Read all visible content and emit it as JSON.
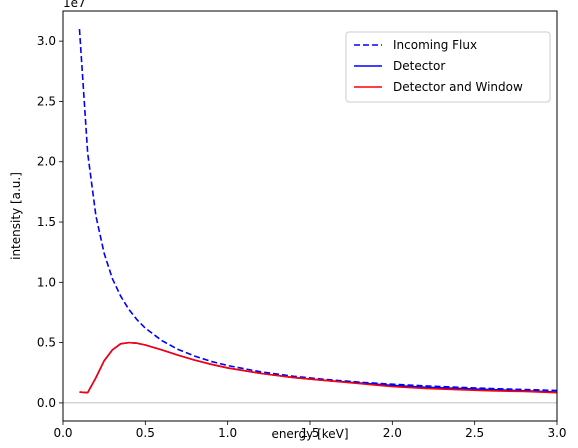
{
  "chart_data": {
    "type": "line",
    "title": "",
    "xlabel": "energy [keV]",
    "ylabel": "intensity [a.u.]",
    "y_offset_label": "1e7",
    "xlim": [
      0.0,
      3.0
    ],
    "ylim": [
      -1.5,
      32.5
    ],
    "y_scale_multiplier": 10000000,
    "x_ticks": [
      0.0,
      0.5,
      1.0,
      1.5,
      2.0,
      2.5,
      3.0
    ],
    "x_tick_labels": [
      "0.0",
      "0.5",
      "1.0",
      "1.5",
      "2.0",
      "2.5",
      "3.0"
    ],
    "y_ticks": [
      0.0,
      5.0,
      10.0,
      15.0,
      20.0,
      25.0,
      30.0
    ],
    "y_tick_labels": [
      "0.0",
      "0.5",
      "1.0",
      "1.5",
      "2.0",
      "2.5",
      "3.0"
    ],
    "grid": false,
    "zero_line": {
      "y": 0.0,
      "color": "#aaaaaa"
    },
    "legend_position": "top-right",
    "series": [
      {
        "name": "Incoming Flux",
        "color": "#0000ff",
        "style": "dashed",
        "x": [
          0.1,
          0.15,
          0.2,
          0.25,
          0.3,
          0.35,
          0.4,
          0.45,
          0.5,
          0.6,
          0.7,
          0.8,
          0.9,
          1.0,
          1.2,
          1.4,
          1.6,
          1.8,
          2.0,
          2.2,
          2.4,
          2.6,
          2.8,
          3.0
        ],
        "y": [
          31.0,
          20.7,
          15.5,
          12.4,
          10.3,
          8.86,
          7.75,
          6.89,
          6.2,
          5.17,
          4.43,
          3.88,
          3.44,
          3.1,
          2.58,
          2.21,
          1.94,
          1.72,
          1.55,
          1.41,
          1.29,
          1.19,
          1.11,
          1.03
        ]
      },
      {
        "name": "Detector",
        "color": "#0000ff",
        "style": "solid",
        "x": [
          0.1,
          0.15,
          0.2,
          0.25,
          0.3,
          0.35,
          0.4,
          0.45,
          0.5,
          0.6,
          0.7,
          0.8,
          0.9,
          1.0,
          1.2,
          1.4,
          1.6,
          1.8,
          2.0,
          2.2,
          2.4,
          2.6,
          2.8,
          3.0
        ],
        "y": [
          0.9,
          0.85,
          2.1,
          3.5,
          4.4,
          4.9,
          5.0,
          4.95,
          4.8,
          4.4,
          3.95,
          3.55,
          3.2,
          2.9,
          2.45,
          2.1,
          1.85,
          1.65,
          1.45,
          1.3,
          1.2,
          1.1,
          1.0,
          0.9
        ]
      },
      {
        "name": "Detector and Window",
        "color": "#ff0000",
        "style": "solid",
        "x": [
          0.1,
          0.15,
          0.2,
          0.25,
          0.3,
          0.35,
          0.4,
          0.45,
          0.5,
          0.6,
          0.7,
          0.8,
          0.9,
          1.0,
          1.2,
          1.4,
          1.6,
          1.8,
          2.0,
          2.2,
          2.4,
          2.6,
          2.8,
          3.0
        ],
        "y": [
          0.9,
          0.85,
          2.1,
          3.5,
          4.4,
          4.9,
          5.0,
          4.95,
          4.8,
          4.4,
          3.95,
          3.55,
          3.2,
          2.9,
          2.45,
          2.1,
          1.85,
          1.6,
          1.35,
          1.2,
          1.1,
          1.0,
          0.95,
          0.85
        ]
      }
    ]
  }
}
